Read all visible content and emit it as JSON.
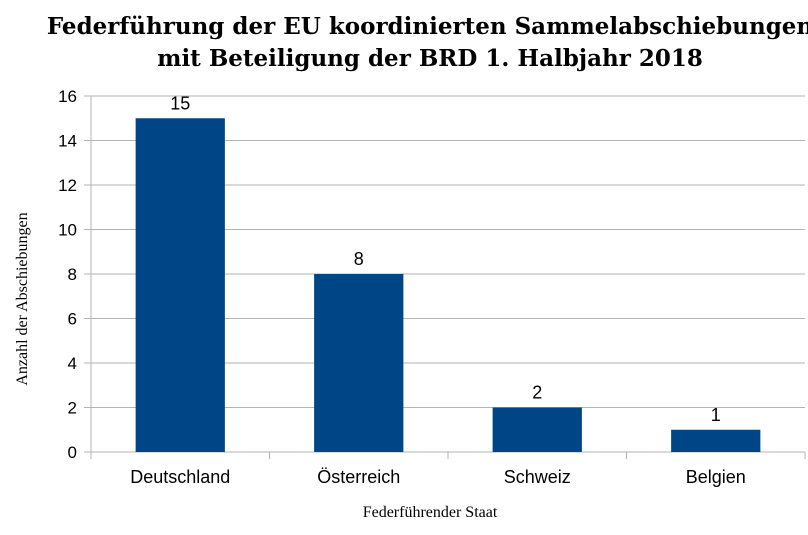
{
  "chart_data": {
    "type": "bar",
    "title": "Federführung der EU koordinierten Sammelabschiebungen",
    "subtitle": "mit Beteiligung der BRD 1. Halbjahr 2018",
    "xlabel": "Federführender Staat",
    "ylabel": "Anzahl der Abschiebungen",
    "categories": [
      "Deutschland",
      "Österreich",
      "Schweiz",
      "Belgien"
    ],
    "values": [
      15,
      8,
      2,
      1
    ],
    "ylim": [
      0,
      16
    ],
    "yticks": [
      0,
      2,
      4,
      6,
      8,
      10,
      12,
      14,
      16
    ],
    "grid": true,
    "legend": "none",
    "bar_color": "#004586"
  }
}
